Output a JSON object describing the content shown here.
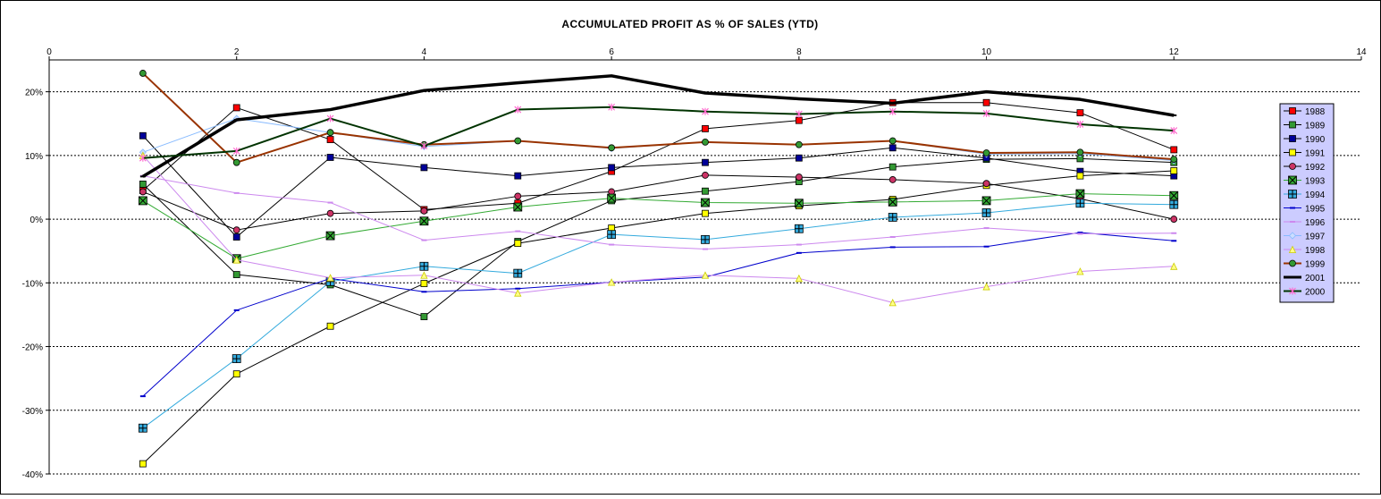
{
  "chart_data": {
    "type": "line",
    "title": "ACCUMULATED PROFIT AS % OF SALES (YTD)",
    "xlabel": "",
    "ylabel": "",
    "xlim": [
      0,
      14
    ],
    "ylim": [
      -40,
      25
    ],
    "x_ticks": [
      "0",
      "2",
      "4",
      "6",
      "8",
      "10",
      "12",
      "14"
    ],
    "y_ticks": [
      "20%",
      "10%",
      "0%",
      "-10%",
      "-20%",
      "-30%",
      "-40%"
    ],
    "y_tick_values": [
      20,
      10,
      0,
      -10,
      -20,
      -30,
      -40
    ],
    "x_tick_values": [
      0,
      2,
      4,
      6,
      8,
      10,
      12,
      14
    ],
    "gridlines": "horizontal dashed",
    "x_axis_position": "top",
    "legend_position": "right",
    "x": [
      1,
      2,
      3,
      4,
      5,
      6,
      7,
      8,
      9,
      10,
      11,
      12
    ],
    "series": [
      {
        "name": "1988",
        "color": "#000000",
        "marker": "square",
        "marker_fill": "#ff0000",
        "line_width": 1,
        "values": [
          4.5,
          17.5,
          12.5,
          1.5,
          2.5,
          7.5,
          14.2,
          15.5,
          18.3,
          18.3,
          16.7,
          10.9
        ]
      },
      {
        "name": "1989",
        "color": "#000000",
        "marker": "square",
        "marker_fill": "#339933",
        "line_width": 1,
        "values": [
          5.5,
          -8.7,
          -10.3,
          -15.3,
          -3.5,
          2.9,
          4.4,
          5.9,
          8.2,
          9.4,
          9.5,
          8.9
        ]
      },
      {
        "name": "1990",
        "color": "#000000",
        "marker": "square",
        "marker_fill": "#000099",
        "line_width": 1,
        "values": [
          13.1,
          -2.8,
          9.7,
          8.1,
          6.8,
          8.1,
          8.9,
          9.6,
          11.2,
          9.6,
          7.5,
          6.8
        ]
      },
      {
        "name": "1991",
        "color": "#000000",
        "marker": "square",
        "marker_fill": "#ffff00",
        "line_width": 1,
        "values": [
          -38.4,
          -24.3,
          -16.8,
          -10.1,
          -3.8,
          -1.4,
          0.9,
          2.1,
          3.1,
          5.3,
          6.8,
          7.6
        ]
      },
      {
        "name": "1992",
        "color": "#000000",
        "marker": "circle",
        "marker_fill": "#cc3366",
        "line_width": 1,
        "values": [
          4.3,
          -1.7,
          0.9,
          1.3,
          3.6,
          4.3,
          6.9,
          6.6,
          6.2,
          5.6,
          3.2,
          0.0
        ]
      },
      {
        "name": "1993",
        "color": "#33aa33",
        "marker": "x-square",
        "marker_fill": "#33aa33",
        "line_width": 1,
        "values": [
          2.9,
          -6.2,
          -2.6,
          -0.3,
          1.9,
          3.3,
          2.6,
          2.5,
          2.7,
          2.9,
          4.0,
          3.7
        ]
      },
      {
        "name": "1994",
        "color": "#33aadd",
        "marker": "plus-square",
        "marker_fill": "#33aadd",
        "line_width": 1,
        "values": [
          -32.8,
          -21.9,
          -9.8,
          -7.4,
          -8.5,
          -2.4,
          -3.2,
          -1.5,
          0.3,
          1.0,
          2.5,
          2.3
        ]
      },
      {
        "name": "1995",
        "color": "#0000cc",
        "marker": "dash",
        "marker_fill": "#0000cc",
        "line_width": 1,
        "values": [
          -27.8,
          -14.3,
          -9.3,
          -11.4,
          -10.9,
          -9.9,
          -9.1,
          -5.3,
          -4.4,
          -4.3,
          -2.1,
          -3.4
        ]
      },
      {
        "name": "1996",
        "color": "#cc88ee",
        "marker": "dash",
        "marker_fill": "#cc88ee",
        "line_width": 1,
        "values": [
          6.8,
          4.1,
          2.6,
          -3.3,
          -1.9,
          -4.0,
          -4.7,
          -4.0,
          -2.8,
          -1.4,
          -2.3,
          -2.2
        ]
      },
      {
        "name": "1997",
        "color": "#88bbff",
        "marker": "diamond",
        "marker_fill": "#ccddff",
        "line_width": 1,
        "values": [
          10.5,
          15.8,
          13.6,
          11.4,
          12.3,
          11.1,
          12.1,
          11.7,
          12.3,
          10.2,
          10.3,
          9.2
        ]
      },
      {
        "name": "1998",
        "color": "#cc88ee",
        "marker": "triangle",
        "marker_fill": "#ffff88",
        "line_width": 1,
        "values": [
          10.0,
          -6.4,
          -9.2,
          -8.8,
          -11.6,
          -9.9,
          -8.8,
          -9.3,
          -13.1,
          -10.6,
          -8.2,
          -7.4
        ]
      },
      {
        "name": "1999",
        "color": "#993300",
        "marker": "circle",
        "marker_fill": "#339933",
        "line_width": 2,
        "values": [
          22.9,
          8.9,
          13.6,
          11.7,
          12.3,
          11.2,
          12.1,
          11.7,
          12.3,
          10.4,
          10.5,
          9.4
        ]
      },
      {
        "name": "2001",
        "color": "#000000",
        "marker": "dash",
        "marker_fill": "#000000",
        "line_width": 3.5,
        "values": [
          6.7,
          15.6,
          17.2,
          20.2,
          21.4,
          22.5,
          19.8,
          18.9,
          18.2,
          20.0,
          18.8,
          16.3
        ]
      },
      {
        "name": "2000",
        "color": "#003300",
        "marker": "asterisk",
        "marker_fill": "#ff66cc",
        "line_width": 2,
        "values": [
          9.6,
          10.7,
          15.8,
          11.5,
          17.2,
          17.6,
          16.9,
          16.5,
          16.9,
          16.6,
          14.9,
          13.9
        ]
      }
    ]
  }
}
